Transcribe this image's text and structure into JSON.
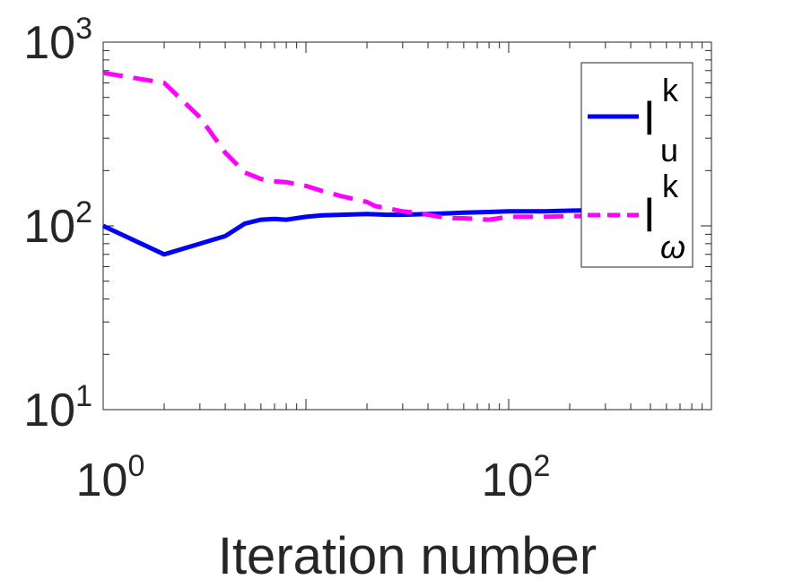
{
  "chart_data": {
    "type": "line",
    "xscale": "log",
    "yscale": "log",
    "xlim": [
      1,
      1000
    ],
    "ylim": [
      10,
      1000
    ],
    "xlabel": "Iteration number",
    "ylabel": "",
    "x_ticks": [
      {
        "base": "10",
        "exp": "0"
      },
      {
        "base": "10",
        "exp": "2"
      }
    ],
    "y_ticks": [
      {
        "base": "10",
        "exp": "1"
      },
      {
        "base": "10",
        "exp": "2"
      },
      {
        "base": "10",
        "exp": "3"
      }
    ],
    "grid": false,
    "legend_position": "top-right",
    "series": [
      {
        "name": "l_u^k",
        "legend_main": "l",
        "legend_sup": "k",
        "legend_sub": "u",
        "color": "#0000ff",
        "style": "solid",
        "x": [
          1,
          2,
          3,
          4,
          5,
          6,
          7,
          8,
          10,
          12,
          15,
          20,
          25,
          30,
          40,
          50,
          60,
          80,
          100,
          150,
          200,
          300,
          400
        ],
        "y": [
          100,
          70,
          80,
          88,
          103,
          108,
          109,
          108,
          112,
          114,
          115,
          116,
          115,
          115,
          116,
          117,
          118,
          119,
          120,
          120,
          121,
          122,
          122
        ]
      },
      {
        "name": "l_ω^k",
        "legend_main": "l",
        "legend_sup": "k",
        "legend_sub": "ω",
        "color": "#ff00ff",
        "style": "dashed",
        "x": [
          1,
          2,
          3,
          4,
          5,
          6,
          7,
          8,
          10,
          12,
          15,
          20,
          22,
          25,
          30,
          35,
          40,
          50,
          60,
          80,
          100,
          150,
          200,
          300,
          400
        ],
        "y": [
          680,
          600,
          390,
          250,
          195,
          180,
          175,
          173,
          165,
          155,
          145,
          135,
          128,
          125,
          120,
          118,
          115,
          110,
          110,
          108,
          112,
          112,
          113,
          113,
          113
        ]
      }
    ]
  }
}
